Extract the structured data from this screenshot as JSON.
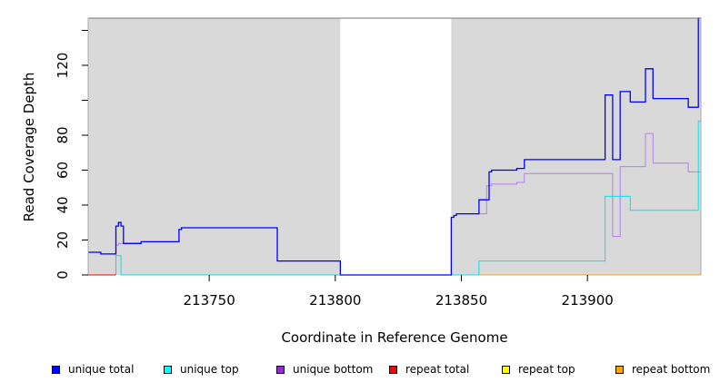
{
  "chart_data": {
    "type": "line",
    "title": "",
    "xlabel": "Coordinate in Reference Genome",
    "ylabel": "Read Coverage Depth",
    "xlim": [
      213702,
      213945
    ],
    "ylim": [
      0,
      147
    ],
    "x_ticks": [
      213750,
      213800,
      213850,
      213900
    ],
    "x_tick_labels": [
      "213750",
      "213800",
      "213850",
      "213900"
    ],
    "y_ticks": [
      0,
      20,
      40,
      60,
      80,
      100,
      120,
      140
    ],
    "y_tick_labels": [
      "0",
      "20",
      "40",
      "60",
      "80",
      "",
      "120",
      ""
    ],
    "background": "#d9d9d9",
    "gap_region": [
      213802,
      213846
    ],
    "legend_placement": "bottom",
    "series": [
      {
        "name": "unique total",
        "color": "#0000ff",
        "points": [
          [
            213702,
            13
          ],
          [
            213707,
            13
          ],
          [
            213707,
            12
          ],
          [
            213713,
            12
          ],
          [
            213713,
            28
          ],
          [
            213714,
            28
          ],
          [
            213714,
            30
          ],
          [
            213715,
            30
          ],
          [
            213715,
            28
          ],
          [
            213716,
            28
          ],
          [
            213716,
            18
          ],
          [
            213723,
            18
          ],
          [
            213723,
            19
          ],
          [
            213738,
            19
          ],
          [
            213738,
            26
          ],
          [
            213739,
            26
          ],
          [
            213739,
            27
          ],
          [
            213777,
            27
          ],
          [
            213777,
            8
          ],
          [
            213802,
            8
          ],
          [
            213802,
            0
          ],
          [
            213846,
            0
          ],
          [
            213846,
            33
          ],
          [
            213847,
            33
          ],
          [
            213847,
            34
          ],
          [
            213848,
            34
          ],
          [
            213848,
            35
          ],
          [
            213857,
            35
          ],
          [
            213857,
            43
          ],
          [
            213861,
            43
          ],
          [
            213861,
            59
          ],
          [
            213862,
            59
          ],
          [
            213862,
            60
          ],
          [
            213872,
            60
          ],
          [
            213872,
            61
          ],
          [
            213875,
            61
          ],
          [
            213875,
            66
          ],
          [
            213907,
            66
          ],
          [
            213907,
            103
          ],
          [
            213910,
            103
          ],
          [
            213910,
            66
          ],
          [
            213913,
            66
          ],
          [
            213913,
            105
          ],
          [
            213917,
            105
          ],
          [
            213917,
            99
          ],
          [
            213923,
            99
          ],
          [
            213923,
            118
          ],
          [
            213926,
            118
          ],
          [
            213926,
            101
          ],
          [
            213940,
            101
          ],
          [
            213940,
            96
          ],
          [
            213944,
            96
          ],
          [
            213944,
            147
          ],
          [
            213945,
            147
          ]
        ]
      },
      {
        "name": "unique top",
        "color": "#00e5ee",
        "points": [
          [
            213702,
            13
          ],
          [
            213707,
            13
          ],
          [
            213707,
            12
          ],
          [
            213713,
            12
          ],
          [
            213713,
            11
          ],
          [
            213715,
            11
          ],
          [
            213715,
            0
          ],
          [
            213857,
            0
          ],
          [
            213857,
            8
          ],
          [
            213907,
            8
          ],
          [
            213907,
            45
          ],
          [
            213917,
            45
          ],
          [
            213917,
            37
          ],
          [
            213944,
            37
          ],
          [
            213944,
            88
          ],
          [
            213945,
            88
          ]
        ]
      },
      {
        "name": "unique bottom",
        "color": "#b17ff0",
        "points": [
          [
            213713,
            0
          ],
          [
            213713,
            17
          ],
          [
            213714,
            17
          ],
          [
            213714,
            18
          ],
          [
            213716,
            18
          ],
          [
            213716,
            18
          ],
          [
            213723,
            18
          ],
          [
            213723,
            19
          ],
          [
            213738,
            19
          ],
          [
            213738,
            26
          ],
          [
            213739,
            26
          ],
          [
            213739,
            27
          ],
          [
            213777,
            27
          ],
          [
            213777,
            8
          ],
          [
            213802,
            8
          ],
          [
            213802,
            0
          ],
          [
            213846,
            0
          ],
          [
            213846,
            33
          ],
          [
            213847,
            33
          ],
          [
            213847,
            34
          ],
          [
            213848,
            34
          ],
          [
            213848,
            35
          ],
          [
            213860,
            35
          ],
          [
            213860,
            51
          ],
          [
            213862,
            51
          ],
          [
            213862,
            52
          ],
          [
            213872,
            52
          ],
          [
            213872,
            53
          ],
          [
            213875,
            53
          ],
          [
            213875,
            58
          ],
          [
            213910,
            58
          ],
          [
            213910,
            22
          ],
          [
            213913,
            22
          ],
          [
            213913,
            62
          ],
          [
            213923,
            62
          ],
          [
            213923,
            81
          ],
          [
            213926,
            81
          ],
          [
            213926,
            64
          ],
          [
            213940,
            64
          ],
          [
            213940,
            59
          ],
          [
            213945,
            59
          ]
        ]
      },
      {
        "name": "repeat total",
        "color": "#ff0000",
        "points": [
          [
            213702,
            0
          ],
          [
            213713,
            0
          ]
        ]
      },
      {
        "name": "repeat top",
        "color": "#ffff00",
        "points": []
      },
      {
        "name": "repeat bottom",
        "color": "#ffa500",
        "points": [
          [
            213857,
            0
          ],
          [
            213945,
            0
          ]
        ]
      }
    ]
  },
  "legend": {
    "items": [
      {
        "label": "unique total",
        "color": "#0000ff"
      },
      {
        "label": "unique top",
        "color": "#00ffff"
      },
      {
        "label": "unique bottom",
        "color": "#a020f0"
      },
      {
        "label": "repeat total",
        "color": "#ff0000"
      },
      {
        "label": "repeat top",
        "color": "#ffff00"
      },
      {
        "label": "repeat bottom",
        "color": "#ffa500"
      }
    ]
  }
}
